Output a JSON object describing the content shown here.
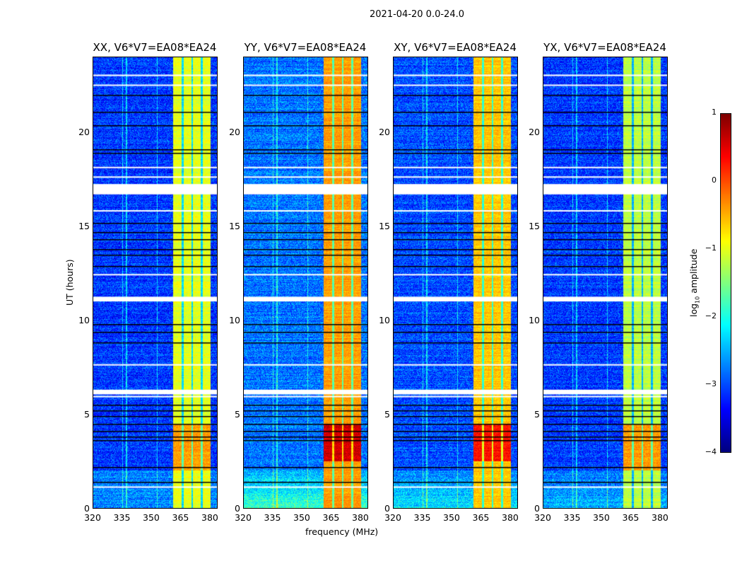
{
  "figure_title": "2021-04-20 0.0-24.0",
  "chart_data": [
    {
      "type": "heatmap",
      "title": "XX, V6*V7=EA08*EA24",
      "xlabel": "",
      "ylabel": "UT (hours)",
      "xlim": [
        320,
        384
      ],
      "ylim": [
        0,
        24
      ],
      "xticks": [
        "320",
        "335",
        "350",
        "365",
        "380"
      ],
      "yticks": [
        "0",
        "5",
        "10",
        "15",
        "20"
      ],
      "background_log_amp": -3.1,
      "band_mhz": [
        361,
        380.5
      ],
      "band_log_amp": -1.0,
      "band_peak_log_amp": -0.4,
      "band_peak_hours": [
        2,
        4.5
      ],
      "lowband_log_amp": -3.0
    },
    {
      "type": "heatmap",
      "title": "YY, V6*V7=EA08*EA24",
      "xlabel": "frequency (MHz)",
      "ylabel": "",
      "xlim": [
        320,
        384
      ],
      "ylim": [
        0,
        24
      ],
      "xticks": [
        "320",
        "335",
        "350",
        "365",
        "380"
      ],
      "yticks": [
        "0",
        "5",
        "10",
        "15",
        "20"
      ],
      "background_log_amp": -2.8,
      "band_mhz": [
        361,
        380.5
      ],
      "band_log_amp": -0.4,
      "band_peak_log_amp": 0.6,
      "band_peak_hours": [
        2.5,
        4.5
      ],
      "lowband_log_amp": -2.2
    },
    {
      "type": "heatmap",
      "title": "XY, V6*V7=EA08*EA24",
      "xlabel": "",
      "ylabel": "",
      "xlim": [
        320,
        384
      ],
      "ylim": [
        0,
        24
      ],
      "xticks": [
        "320",
        "335",
        "350",
        "365",
        "380"
      ],
      "yticks": [
        "0",
        "5",
        "10",
        "15",
        "20"
      ],
      "background_log_amp": -3.0,
      "band_mhz": [
        361,
        380.5
      ],
      "band_log_amp": -0.6,
      "band_peak_log_amp": 0.3,
      "band_peak_hours": [
        2.5,
        4.5
      ],
      "lowband_log_amp": -2.5
    },
    {
      "type": "heatmap",
      "title": "YX, V6*V7=EA08*EA24",
      "xlabel": "",
      "ylabel": "",
      "xlim": [
        320,
        384
      ],
      "ylim": [
        0,
        24
      ],
      "xticks": [
        "320",
        "335",
        "350",
        "365",
        "380"
      ],
      "yticks": [
        "0",
        "5",
        "10",
        "15",
        "20"
      ],
      "background_log_amp": -3.1,
      "band_mhz": [
        361,
        380.5
      ],
      "band_log_amp": -1.2,
      "band_peak_log_amp": -0.4,
      "band_peak_hours": [
        2,
        4.5
      ],
      "lowband_log_amp": -2.8
    }
  ],
  "flagged_hours": [
    [
      16.7,
      17.25
    ],
    [
      11.0,
      11.25
    ],
    [
      6.05,
      6.3
    ],
    [
      5.9,
      5.97
    ],
    [
      23.0,
      23.08
    ],
    [
      22.5,
      22.55
    ],
    [
      18.1,
      18.17
    ],
    [
      17.6,
      17.66
    ],
    [
      12.4,
      12.46
    ],
    [
      7.6,
      7.66
    ],
    [
      15.8,
      15.86
    ],
    [
      1.1,
      1.15
    ]
  ],
  "dark_rows_hours": [
    22.0,
    21.1,
    20.4,
    19.1,
    18.9,
    15.2,
    14.7,
    14.3,
    13.8,
    13.5,
    12.9,
    9.8,
    9.4,
    8.8,
    5.5,
    5.2,
    4.9,
    4.5,
    4.1,
    3.8,
    3.6,
    2.2,
    1.4
  ],
  "subband_gaps_mhz": [
    366,
    371,
    376
  ],
  "colorbar": {
    "label": "log10 amplitude",
    "label_base": "log",
    "label_sub": "10",
    "label_rest": " amplitude",
    "range": [
      -4,
      1
    ],
    "ticks": [
      "−4",
      "−3",
      "−2",
      "−1",
      "0",
      "1"
    ],
    "colormap": "jet"
  }
}
